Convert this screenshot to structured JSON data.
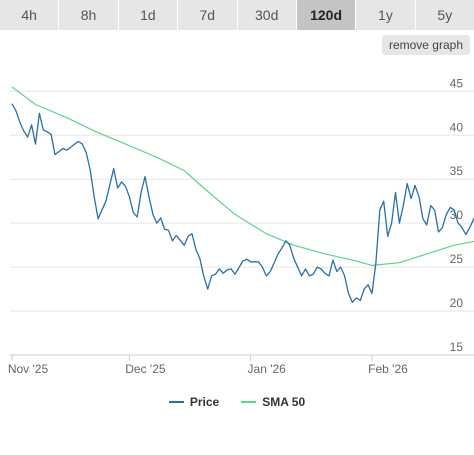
{
  "tabs": [
    {
      "label": "4h",
      "active": false
    },
    {
      "label": "8h",
      "active": false
    },
    {
      "label": "1d",
      "active": false
    },
    {
      "label": "7d",
      "active": false
    },
    {
      "label": "30d",
      "active": false
    },
    {
      "label": "120d",
      "active": true
    },
    {
      "label": "1y",
      "active": false
    },
    {
      "label": "5y",
      "active": false
    }
  ],
  "remove_button": "remove graph",
  "colors": {
    "price": "#2b6fa8",
    "sma": "#5cd48c",
    "grid": "#e6e6e6",
    "tab_bg": "#e6e6e6",
    "tab_active_bg": "#c4c4c4"
  },
  "chart_data": {
    "type": "line",
    "title": "",
    "xlabel": "",
    "ylabel": "",
    "x_range": [
      "2025-10-31",
      "2026-03-01"
    ],
    "ylim": [
      15,
      48
    ],
    "y_ticks": [
      15,
      20,
      25,
      30,
      35,
      40,
      45
    ],
    "y_axis_position": "right",
    "x_ticks": [
      {
        "label": "Nov '25",
        "date": "2025-11-01"
      },
      {
        "label": "Dec '25",
        "date": "2025-12-01"
      },
      {
        "label": "Jan '26",
        "date": "2026-01-01"
      },
      {
        "label": "Feb '26",
        "date": "2026-02-01"
      }
    ],
    "grid": true,
    "legend_position": "bottom-center",
    "series": [
      {
        "name": "Price",
        "color": "#2b6fa8",
        "points": [
          [
            "2025-11-01",
            43.6
          ],
          [
            "2025-11-02",
            42.8
          ],
          [
            "2025-11-03",
            41.5
          ],
          [
            "2025-11-04",
            40.5
          ],
          [
            "2025-11-05",
            39.8
          ],
          [
            "2025-11-06",
            41.2
          ],
          [
            "2025-11-07",
            39.0
          ],
          [
            "2025-11-08",
            42.5
          ],
          [
            "2025-11-09",
            40.6
          ],
          [
            "2025-11-10",
            40.4
          ],
          [
            "2025-11-11",
            40.1
          ],
          [
            "2025-11-12",
            37.8
          ],
          [
            "2025-11-14",
            38.5
          ],
          [
            "2025-11-15",
            38.3
          ],
          [
            "2025-11-17",
            39.0
          ],
          [
            "2025-11-18",
            39.3
          ],
          [
            "2025-11-19",
            39.0
          ],
          [
            "2025-11-20",
            38.0
          ],
          [
            "2025-11-21",
            36.0
          ],
          [
            "2025-11-22",
            33.0
          ],
          [
            "2025-11-23",
            30.5
          ],
          [
            "2025-11-24",
            31.5
          ],
          [
            "2025-11-25",
            32.5
          ],
          [
            "2025-11-27",
            36.2
          ],
          [
            "2025-11-28",
            34.0
          ],
          [
            "2025-11-29",
            34.7
          ],
          [
            "2025-11-30",
            34.2
          ],
          [
            "2025-12-01",
            33.0
          ],
          [
            "2025-12-02",
            31.2
          ],
          [
            "2025-12-03",
            30.7
          ],
          [
            "2025-12-04",
            33.5
          ],
          [
            "2025-12-05",
            35.3
          ],
          [
            "2025-12-06",
            33.0
          ],
          [
            "2025-12-07",
            31.0
          ],
          [
            "2025-12-08",
            30.0
          ],
          [
            "2025-12-09",
            30.6
          ],
          [
            "2025-12-10",
            29.3
          ],
          [
            "2025-12-11",
            29.2
          ],
          [
            "2025-12-12",
            28.0
          ],
          [
            "2025-12-13",
            28.6
          ],
          [
            "2025-12-15",
            27.5
          ],
          [
            "2025-12-16",
            28.5
          ],
          [
            "2025-12-17",
            28.8
          ],
          [
            "2025-12-18",
            27.0
          ],
          [
            "2025-12-19",
            26.0
          ],
          [
            "2025-12-20",
            24.0
          ],
          [
            "2025-12-21",
            22.5
          ],
          [
            "2025-12-22",
            24.0
          ],
          [
            "2025-12-23",
            24.2
          ],
          [
            "2025-12-24",
            24.8
          ],
          [
            "2025-12-25",
            24.3
          ],
          [
            "2025-12-26",
            24.7
          ],
          [
            "2025-12-27",
            24.8
          ],
          [
            "2025-12-28",
            24.2
          ],
          [
            "2025-12-30",
            25.7
          ],
          [
            "2025-12-31",
            25.9
          ],
          [
            "2026-01-01",
            25.6
          ],
          [
            "2026-01-03",
            25.6
          ],
          [
            "2026-01-04",
            25.0
          ],
          [
            "2026-01-05",
            24.0
          ],
          [
            "2026-01-06",
            24.5
          ],
          [
            "2026-01-08",
            26.5
          ],
          [
            "2026-01-09",
            27.2
          ],
          [
            "2026-01-10",
            28.0
          ],
          [
            "2026-01-11",
            27.5
          ],
          [
            "2026-01-12",
            26.0
          ],
          [
            "2026-01-14",
            24.0
          ],
          [
            "2026-01-15",
            24.8
          ],
          [
            "2026-01-16",
            24.0
          ],
          [
            "2026-01-17",
            24.2
          ],
          [
            "2026-01-18",
            25.0
          ],
          [
            "2026-01-19",
            24.8
          ],
          [
            "2026-01-20",
            24.3
          ],
          [
            "2026-01-21",
            24.0
          ],
          [
            "2026-01-22",
            25.8
          ],
          [
            "2026-01-23",
            24.5
          ],
          [
            "2026-01-24",
            25.0
          ],
          [
            "2026-01-25",
            24.0
          ],
          [
            "2026-01-26",
            22.0
          ],
          [
            "2026-01-27",
            21.0
          ],
          [
            "2026-01-28",
            21.5
          ],
          [
            "2026-01-29",
            21.2
          ],
          [
            "2026-01-30",
            22.5
          ],
          [
            "2026-01-31",
            23.0
          ],
          [
            "2026-02-01",
            22.0
          ],
          [
            "2026-02-02",
            25.5
          ],
          [
            "2026-02-03",
            31.5
          ],
          [
            "2026-02-04",
            32.5
          ],
          [
            "2026-02-05",
            28.5
          ],
          [
            "2026-02-06",
            30.0
          ],
          [
            "2026-02-07",
            33.5
          ],
          [
            "2026-02-08",
            30.0
          ],
          [
            "2026-02-09",
            32.0
          ],
          [
            "2026-02-10",
            34.5
          ],
          [
            "2026-02-11",
            32.8
          ],
          [
            "2026-02-12",
            34.3
          ],
          [
            "2026-02-13",
            33.0
          ],
          [
            "2026-02-14",
            30.5
          ],
          [
            "2026-02-15",
            29.8
          ],
          [
            "2026-02-16",
            32.0
          ],
          [
            "2026-02-17",
            31.5
          ],
          [
            "2026-02-18",
            29.0
          ],
          [
            "2026-02-19",
            29.5
          ],
          [
            "2026-02-20",
            31.0
          ],
          [
            "2026-02-21",
            31.8
          ],
          [
            "2026-02-22",
            31.5
          ],
          [
            "2026-02-23",
            30.0
          ],
          [
            "2026-02-24",
            29.5
          ],
          [
            "2026-02-25",
            28.7
          ],
          [
            "2026-02-26",
            29.5
          ],
          [
            "2026-02-27",
            30.5
          ],
          [
            "2026-02-28",
            29.5
          ],
          [
            "2026-02-29",
            28.5
          ],
          [
            "2026-03-01",
            26.5
          ],
          [
            "2026-03-02",
            27.5
          ],
          [
            "2026-03-03",
            28.5
          ],
          [
            "2026-03-04",
            27.5
          ]
        ]
      },
      {
        "name": "SMA 50",
        "color": "#5cd48c",
        "points": [
          [
            "2025-11-01",
            45.5
          ],
          [
            "2025-11-07",
            43.5
          ],
          [
            "2025-11-15",
            42.0
          ],
          [
            "2025-11-22",
            40.5
          ],
          [
            "2025-11-30",
            39.0
          ],
          [
            "2025-12-08",
            37.5
          ],
          [
            "2025-12-15",
            36.0
          ],
          [
            "2025-12-20",
            34.0
          ],
          [
            "2025-12-28",
            31.0
          ],
          [
            "2026-01-05",
            28.8
          ],
          [
            "2026-01-12",
            27.5
          ],
          [
            "2026-01-20",
            26.5
          ],
          [
            "2026-01-27",
            25.8
          ],
          [
            "2026-02-01",
            25.2
          ],
          [
            "2026-02-08",
            25.5
          ],
          [
            "2026-02-15",
            26.5
          ],
          [
            "2026-02-22",
            27.5
          ],
          [
            "2026-02-28",
            28.0
          ],
          [
            "2026-03-04",
            28.3
          ]
        ]
      }
    ]
  }
}
